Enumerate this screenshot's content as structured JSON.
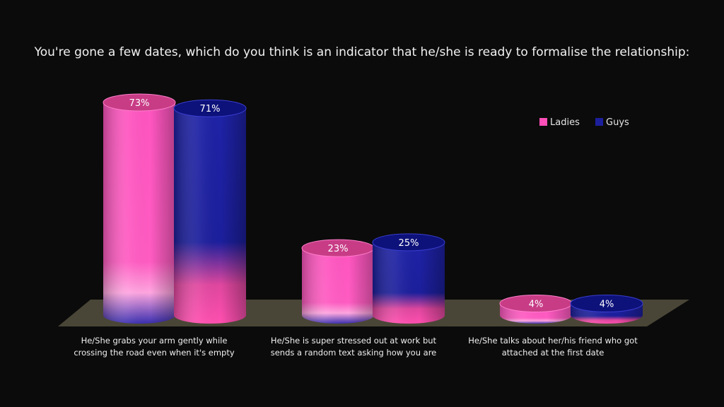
{
  "chart_data": {
    "type": "bar",
    "title": "You're gone a few dates, which do you think is an indicator that he/she is ready to formalise the relationship:",
    "categories": [
      [
        "He/She grabs your arm gently while",
        "crossing the road even when it's empty"
      ],
      [
        "He/She is super stressed out at work but",
        "sends a random text asking how you are"
      ],
      [
        "He/She talks about her/his friend who got",
        "attached at the first date"
      ]
    ],
    "series": [
      {
        "name": "Ladies",
        "values": [
          73,
          23,
          4
        ],
        "labels": [
          "73%",
          "23%",
          "4%"
        ],
        "color": "#ff4fb8"
      },
      {
        "name": "Guys",
        "values": [
          71,
          25,
          4
        ],
        "labels": [
          "71%",
          "25%",
          "4%"
        ],
        "color": "#1c1f9c"
      }
    ],
    "ylim": [
      0,
      73
    ],
    "legend_position": "top-right",
    "grid": false,
    "colors": {
      "background": "#0b0b0b",
      "floor": "#4a4637",
      "ladies_top": "#c83c86",
      "guys_top": "#0d117a"
    }
  }
}
